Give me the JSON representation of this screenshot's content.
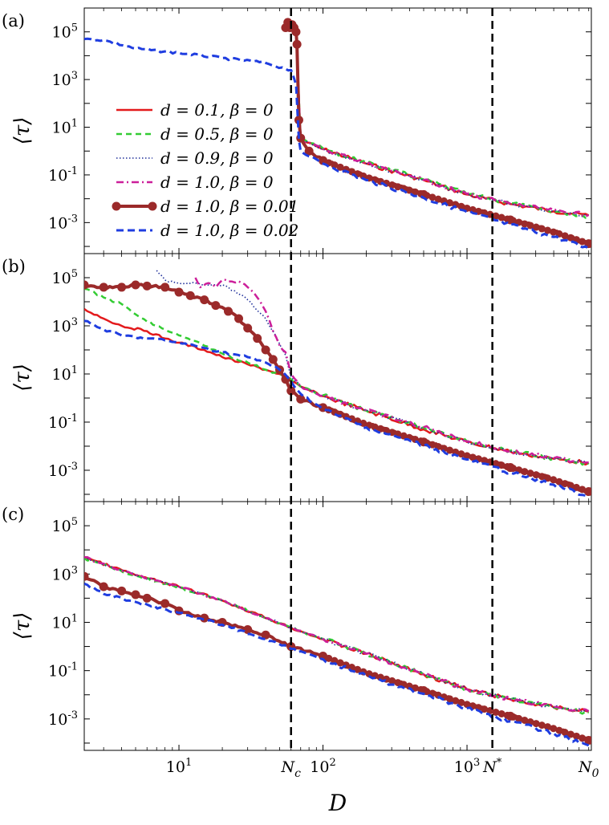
{
  "chart_data": {
    "type": "line",
    "xlabel": "D",
    "ylabel": "⟨τ⟩",
    "xscale": "log",
    "yscale": "log",
    "xlim": [
      2.2,
      7300
    ],
    "ylim": [
      5e-05,
      1000000
    ],
    "colors": {
      "d01": "#e31a1c",
      "d05": "#33cc33",
      "d09": "#1f2f9a",
      "d10": "#cc1f9a",
      "b001": "#9b2a2a",
      "b002": "#1f3de0"
    },
    "legend": {
      "position": "center-left",
      "entries": [
        "d = 0.1, β = 0",
        "d = 0.5, β = 0",
        "d = 0.9, β = 0",
        "d = 1.0, β = 0",
        "d = 1.0, β = 0.01",
        "d = 1.0, β = 0.02"
      ]
    },
    "vlines": [
      {
        "label": "N_c",
        "x": 60
      },
      {
        "label": "N*",
        "x": 1500
      }
    ],
    "x_ticks": [
      {
        "label": "10",
        "exp": "1",
        "x": 10
      },
      {
        "label": "N",
        "sub": "c",
        "x": 60
      },
      {
        "label": "10",
        "exp": "2",
        "x": 100
      },
      {
        "label": "10",
        "exp": "3",
        "x": 1000
      },
      {
        "label": "N",
        "sup": "*",
        "x": 1500
      },
      {
        "label": "N",
        "sub": "0",
        "x": 7000
      }
    ],
    "y_ticks": [
      {
        "label": "10",
        "exp": "5",
        "y": 100000
      },
      {
        "label": "10",
        "exp": "3",
        "y": 1000
      },
      {
        "label": "10",
        "exp": "1",
        "y": 10
      },
      {
        "label": "10",
        "exp": "-1",
        "y": 0.1
      },
      {
        "label": "10",
        "exp": "-3",
        "y": 0.001
      }
    ],
    "panels": [
      {
        "label": "(a)",
        "series": [
          {
            "name": "d = 0.1, β = 0",
            "key": "d01",
            "x": [
              65,
              70,
              100,
              200,
              500,
              1000,
              2000,
              4000,
              7000
            ],
            "y": [
              100000,
              3,
              1.2,
              0.3,
              0.06,
              0.015,
              0.006,
              0.003,
              0.002
            ]
          },
          {
            "name": "d = 0.5, β = 0",
            "key": "d05",
            "x": [
              65,
              70,
              100,
              200,
              500,
              1000,
              2000,
              4000,
              7000
            ],
            "y": [
              80000,
              3.5,
              1.3,
              0.32,
              0.065,
              0.016,
              0.0065,
              0.003,
              0.0018
            ]
          },
          {
            "name": "d = 0.9, β = 0",
            "key": "d09",
            "x": [
              65,
              70,
              100,
              200,
              500,
              1000,
              2000,
              4000,
              7000
            ],
            "y": [
              120000,
              3.2,
              1.2,
              0.3,
              0.06,
              0.015,
              0.006,
              0.003,
              0.002
            ]
          },
          {
            "name": "d = 1.0, β = 0",
            "key": "d10",
            "x": [
              65,
              70,
              100,
              200,
              500,
              1000,
              2000,
              4000,
              7000
            ],
            "y": [
              100000,
              3,
              1.25,
              0.31,
              0.062,
              0.016,
              0.0062,
              0.0032,
              0.0021
            ]
          },
          {
            "name": "d = 1.0, β = 0.01",
            "key": "b001",
            "x": [
              55,
              57,
              59,
              61,
              63,
              65,
              66,
              68,
              70,
              80,
              100,
              200,
              500,
              1000,
              2000,
              4000,
              7000
            ],
            "y": [
              150000,
              250000,
              150000,
              200000,
              150000,
              100000,
              30000,
              20,
              3.5,
              1,
              0.4,
              0.08,
              0.015,
              0.004,
              0.0013,
              0.0004,
              0.00013
            ]
          },
          {
            "name": "d = 1.0, β = 0.02",
            "key": "b002",
            "x": [
              2.2,
              3,
              5,
              10,
              20,
              40,
              55,
              60,
              62,
              65,
              68,
              70,
              80,
              100,
              200,
              500,
              1000,
              2000,
              4000,
              7000
            ],
            "y": [
              50000,
              45000,
              20000,
              13000,
              8000,
              5000,
              2800,
              2500,
              1500,
              600,
              3,
              1,
              0.6,
              0.3,
              0.06,
              0.011,
              0.0028,
              0.0008,
              0.00025,
              8e-05
            ]
          }
        ]
      },
      {
        "label": "(b)",
        "series": [
          {
            "name": "d = 0.1, β = 0",
            "key": "d01",
            "x": [
              2.2,
              3,
              4,
              6,
              8,
              10,
              15,
              20,
              30,
              40,
              50,
              60,
              70,
              100,
              200,
              500,
              1000,
              2000,
              4000,
              7000
            ],
            "y": [
              5000,
              2000,
              1000,
              600,
              300,
              200,
              100,
              50,
              25,
              15,
              10,
              5,
              3,
              1.2,
              0.3,
              0.05,
              0.015,
              0.006,
              0.003,
              0.002
            ]
          },
          {
            "name": "d = 0.5, β = 0",
            "key": "d05",
            "x": [
              2.2,
              3,
              4,
              5,
              6,
              8,
              10,
              15,
              20,
              30,
              40,
              50,
              60,
              70,
              100,
              200,
              500,
              1000,
              2000,
              4000,
              7000
            ],
            "y": [
              35000,
              15000,
              8000,
              3000,
              1500,
              700,
              400,
              150,
              70,
              30,
              15,
              10,
              6,
              3,
              1.3,
              0.3,
              0.06,
              0.016,
              0.0065,
              0.003,
              0.0018
            ]
          },
          {
            "name": "d = 0.9, β = 0",
            "key": "d09",
            "x": [
              7,
              8,
              10,
              13,
              18,
              22,
              30,
              40,
              48,
              55,
              60,
              70,
              100,
              200,
              500,
              1000,
              2000,
              4000,
              7000
            ],
            "y": [
              200000,
              80000,
              60000,
              60000,
              50000,
              40000,
              12000,
              2000,
              300,
              60,
              8,
              3,
              1.2,
              0.3,
              0.06,
              0.015,
              0.006,
              0.003,
              0.002
            ]
          },
          {
            "name": "d = 1.0, β = 0",
            "key": "d10",
            "x": [
              13,
              14,
              16,
              18,
              20,
              22,
              26,
              30,
              35,
              40,
              45,
              50,
              55,
              60,
              70,
              100,
              200,
              500,
              1000,
              2000,
              4000,
              7000
            ],
            "y": [
              100000,
              40000,
              60000,
              40000,
              80000,
              70000,
              70000,
              40000,
              15000,
              4000,
              600,
              150,
              80,
              10,
              3,
              1.25,
              0.31,
              0.062,
              0.016,
              0.0062,
              0.0032,
              0.0021
            ]
          },
          {
            "name": "d = 1.0, β = 0.01",
            "key": "b001",
            "x": [
              2.2,
              3,
              4,
              5,
              6,
              8,
              10,
              12,
              15,
              18,
              22,
              26,
              30,
              35,
              40,
              45,
              50,
              55,
              60,
              70,
              100,
              200,
              500,
              1000,
              2000,
              4000,
              7000
            ],
            "y": [
              50000,
              40000,
              40000,
              50000,
              45000,
              40000,
              25000,
              18000,
              12000,
              7000,
              4000,
              2000,
              800,
              300,
              100,
              40,
              15,
              6,
              2,
              0.9,
              0.4,
              0.08,
              0.015,
              0.004,
              0.0013,
              0.0004,
              0.00013
            ]
          },
          {
            "name": "d = 1.0, β = 0.02",
            "key": "b002",
            "x": [
              2.2,
              3,
              4,
              6,
              8,
              10,
              15,
              20,
              30,
              40,
              50,
              60,
              70,
              100,
              200,
              500,
              1000,
              2000,
              4000,
              7000
            ],
            "y": [
              1600,
              700,
              400,
              300,
              250,
              200,
              120,
              80,
              50,
              30,
              15,
              5,
              1.5,
              0.35,
              0.06,
              0.011,
              0.0028,
              0.0008,
              0.00025,
              8e-05
            ]
          }
        ]
      },
      {
        "label": "(c)",
        "series": [
          {
            "name": "d = 0.1, β = 0",
            "key": "d01",
            "x": [
              2.2,
              5,
              10,
              20,
              60,
              100,
              200,
              500,
              1000,
              2000,
              4000,
              7000
            ],
            "y": [
              5000,
              900,
              300,
              80,
              6,
              2,
              0.5,
              0.07,
              0.017,
              0.0065,
              0.003,
              0.002
            ]
          },
          {
            "name": "d = 0.5, β = 0",
            "key": "d05",
            "x": [
              2.2,
              5,
              10,
              20,
              60,
              100,
              200,
              500,
              1000,
              2000,
              4000,
              7000
            ],
            "y": [
              4500,
              850,
              280,
              78,
              6,
              2.1,
              0.5,
              0.072,
              0.017,
              0.0065,
              0.003,
              0.0018
            ]
          },
          {
            "name": "d = 0.9, β = 0",
            "key": "d09",
            "x": [
              2.2,
              5,
              10,
              20,
              60,
              100,
              200,
              500,
              1000,
              2000,
              4000,
              7000
            ],
            "y": [
              4800,
              880,
              290,
              80,
              6,
              2,
              0.5,
              0.07,
              0.017,
              0.0065,
              0.003,
              0.002
            ]
          },
          {
            "name": "d = 1.0, β = 0",
            "key": "d10",
            "x": [
              2.2,
              5,
              10,
              20,
              60,
              100,
              200,
              500,
              1000,
              2000,
              4000,
              7000
            ],
            "y": [
              5000,
              900,
              300,
              80,
              6,
              2.05,
              0.5,
              0.07,
              0.017,
              0.0066,
              0.0032,
              0.0021
            ]
          },
          {
            "name": "d = 1.0, β = 0.01",
            "key": "b001",
            "x": [
              2.2,
              3,
              4,
              5,
              6,
              8,
              10,
              15,
              20,
              30,
              40,
              60,
              100,
              200,
              500,
              1000,
              2000,
              4000,
              7000
            ],
            "y": [
              800,
              300,
              200,
              140,
              100,
              60,
              30,
              15,
              10,
              5,
              3,
              1,
              0.4,
              0.08,
              0.015,
              0.004,
              0.0013,
              0.0004,
              0.00013
            ]
          },
          {
            "name": "d = 1.0, β = 0.02",
            "key": "b002",
            "x": [
              2.2,
              3,
              5,
              10,
              20,
              40,
              60,
              100,
              200,
              500,
              1000,
              2000,
              4000,
              7000
            ],
            "y": [
              400,
              150,
              70,
              25,
              8,
              2,
              0.8,
              0.3,
              0.06,
              0.011,
              0.0028,
              0.0008,
              0.00025,
              8e-05
            ]
          }
        ]
      }
    ]
  }
}
